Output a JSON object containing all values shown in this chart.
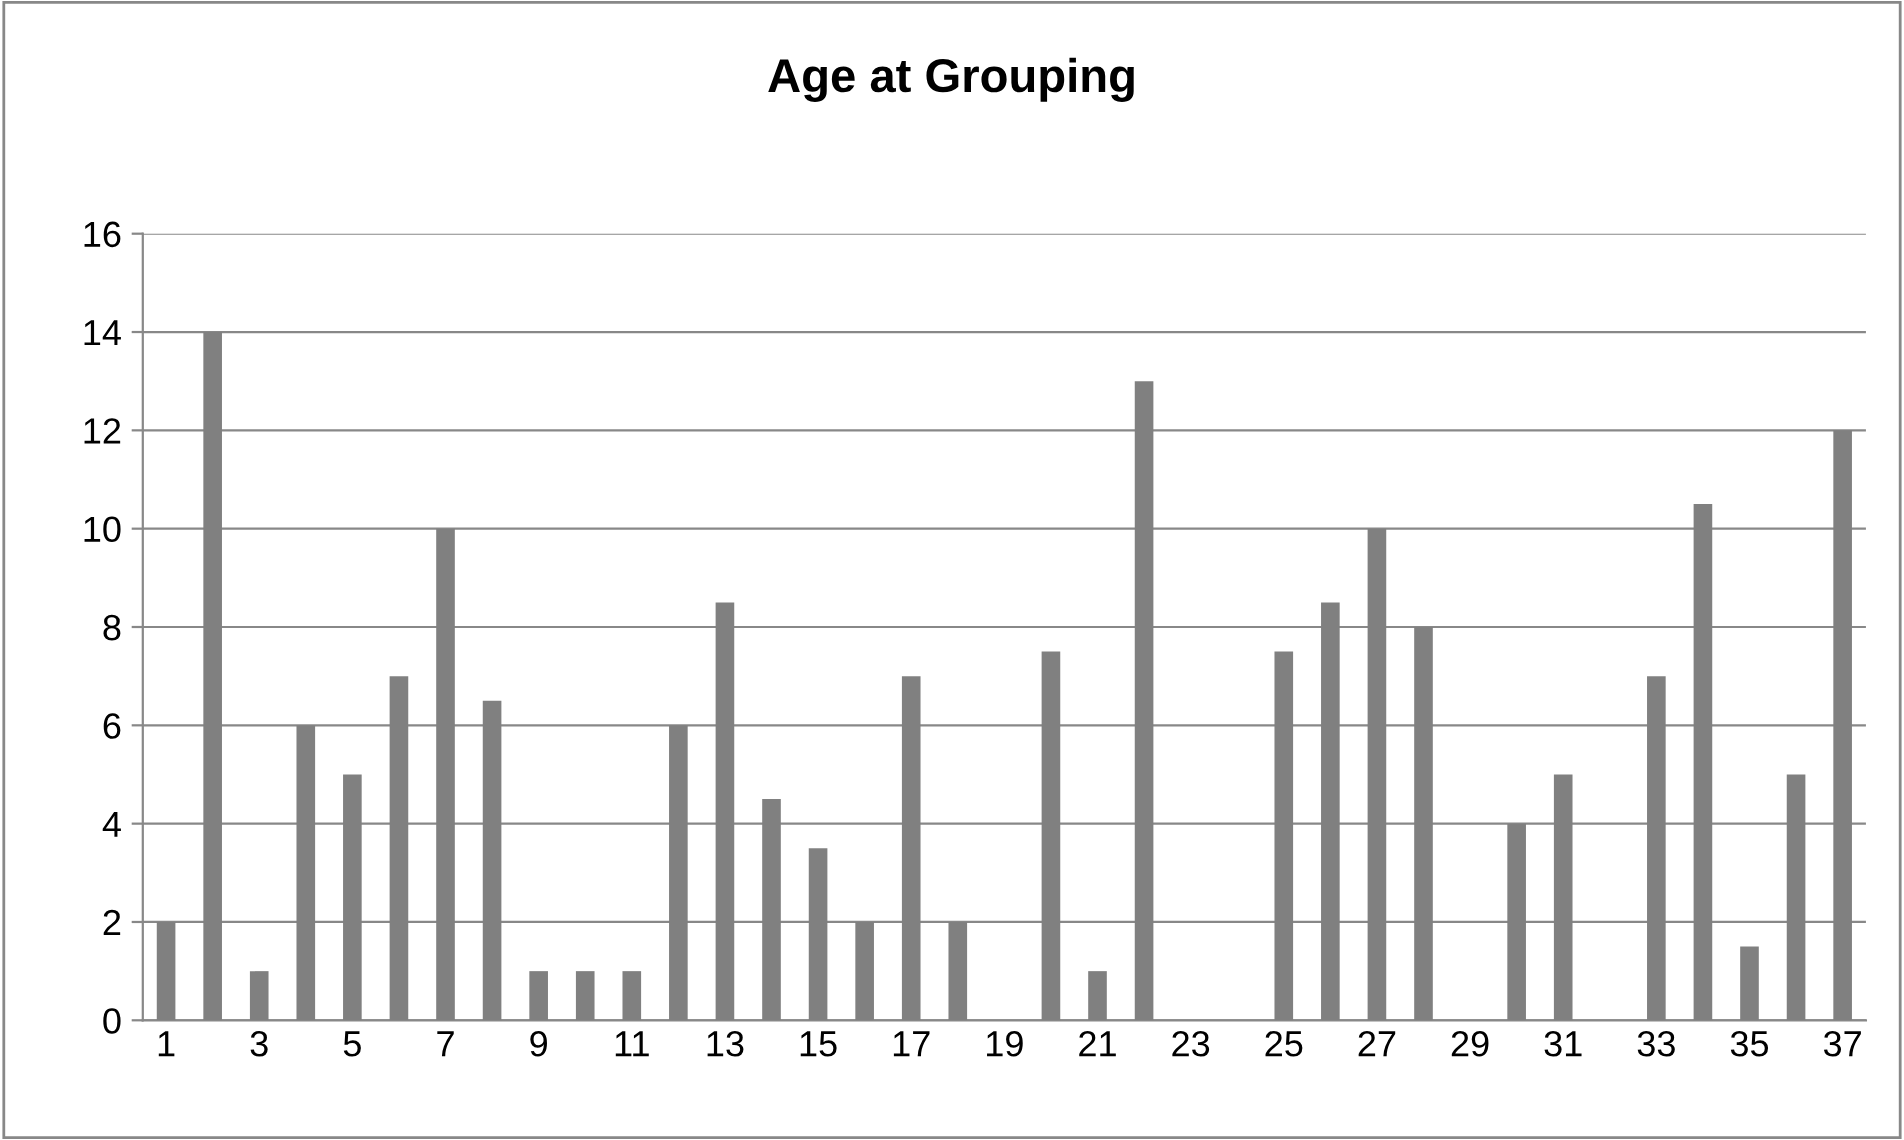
{
  "chart_data": {
    "type": "bar",
    "title": "Age at Grouping",
    "categories": [
      "1",
      null,
      "3",
      null,
      "5",
      null,
      "7",
      null,
      "9",
      null,
      "11",
      null,
      "13",
      null,
      "15",
      null,
      "17",
      null,
      "19",
      null,
      "21",
      null,
      "23",
      null,
      "25",
      null,
      "27",
      null,
      "29",
      null,
      "31",
      null,
      "33",
      null,
      "35",
      null,
      "37"
    ],
    "values": [
      2,
      14,
      1,
      6,
      5,
      7,
      10,
      6.5,
      1,
      1,
      1,
      6,
      8.5,
      4.5,
      3.5,
      2,
      7,
      2,
      0,
      7.5,
      1,
      13,
      0,
      0,
      7.5,
      8.5,
      10,
      8,
      0,
      4,
      5,
      0,
      7,
      10.5,
      1.5,
      5,
      12
    ],
    "color": "#808080",
    "ylim": [
      0,
      16
    ],
    "yticks": [
      0,
      2,
      4,
      6,
      8,
      10,
      12,
      14,
      16
    ],
    "grid": "y",
    "legend": false
  }
}
